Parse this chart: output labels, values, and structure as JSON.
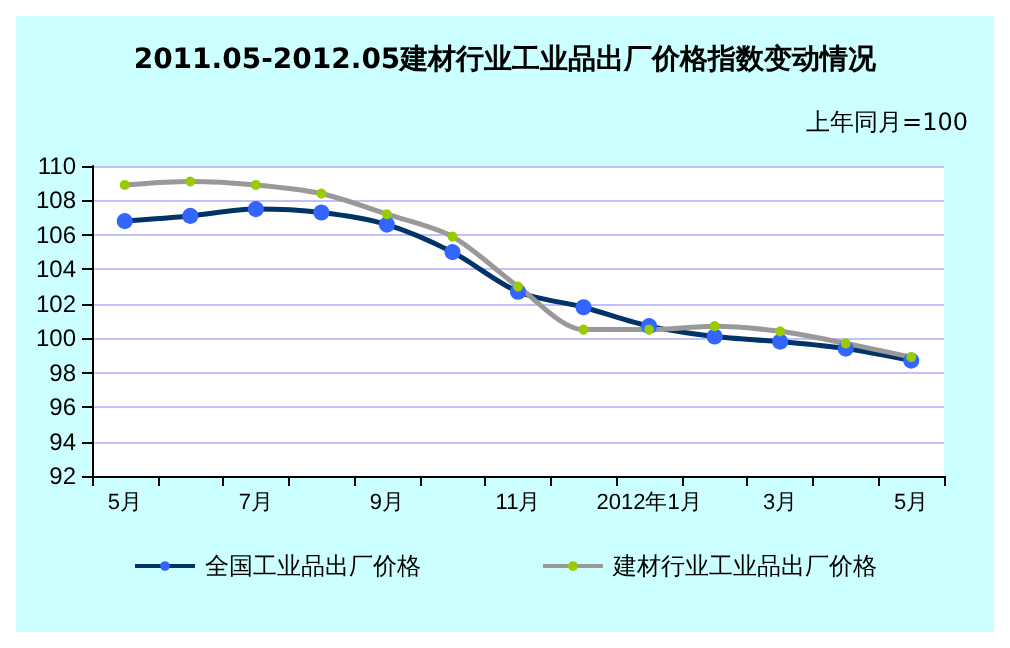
{
  "chart_data": {
    "type": "line",
    "title": "2011.05-2012.05建材行业工业品出厂价格指数变动情况",
    "subtitle": "上年同月=100",
    "categories": [
      "5月",
      null,
      "7月",
      null,
      "9月",
      null,
      "11月",
      null,
      "2012年1月",
      null,
      "3月",
      null,
      "5月"
    ],
    "series": [
      {
        "name": "全国工业品出厂价格",
        "color": "#003366",
        "values": [
          106.8,
          107.1,
          107.5,
          107.3,
          106.6,
          105.0,
          102.7,
          101.8,
          100.7,
          100.1,
          99.8,
          99.4,
          98.7
        ]
      },
      {
        "name": "建材行业工业品出厂价格",
        "color": "#999999",
        "values": [
          108.9,
          109.1,
          108.9,
          108.4,
          107.2,
          105.9,
          103.0,
          100.5,
          100.5,
          100.7,
          100.4,
          99.7,
          98.9
        ]
      }
    ],
    "ylim": [
      92,
      110
    ],
    "yticks": [
      92,
      94,
      96,
      98,
      100,
      102,
      104,
      106,
      108,
      110
    ],
    "grid": "y",
    "legend": "bottom",
    "marker": "circle",
    "line_style": "solid"
  }
}
